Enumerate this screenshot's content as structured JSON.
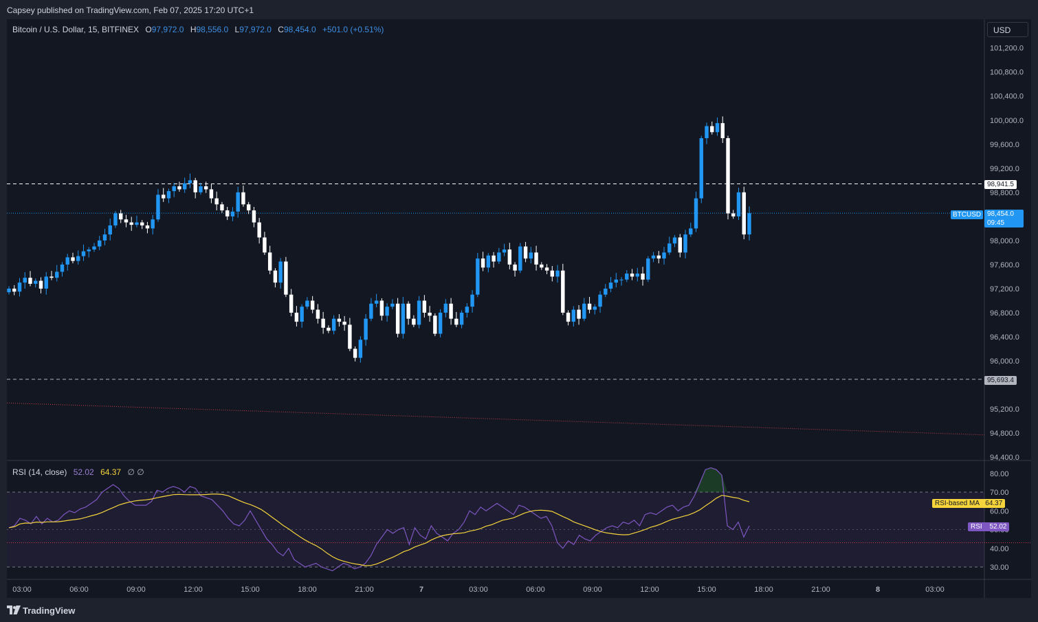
{
  "header": {
    "published": "Capsey published on TradingView.com, Feb 07, 2025 17:20 UTC+1"
  },
  "legend": {
    "symbol": "Bitcoin / U.S. Dollar, 15, BITFINEX",
    "open_label": "O",
    "open": "97,972.0",
    "high_label": "H",
    "high": "98,556.0",
    "low_label": "L",
    "low": "97,972.0",
    "close_label": "C",
    "close": "98,454.0",
    "change": "+501.0 (+0.51%)"
  },
  "currency": "USD",
  "price_axis": {
    "ticks": [
      "101,200.0",
      "100,800.0",
      "100,400.0",
      "100,000.0",
      "99,600.0",
      "99,200.0",
      "98,800.0",
      "98,000.0",
      "97,600.0",
      "97,200.0",
      "96,800.0",
      "96,400.0",
      "96,000.0",
      "95,200.0",
      "94,800.0",
      "94,400.0"
    ]
  },
  "price_tags": {
    "upper_level": "98,941.5",
    "lower_level": "95,693.4",
    "symbol_tag": "BTCUSD",
    "last_price": "98,454.0",
    "countdown": "09:45"
  },
  "rsi": {
    "label": "RSI (14, close)",
    "value": "52.02",
    "ma_value": "64.37",
    "extra": "∅  ∅",
    "ticks": [
      "80.00",
      "70.00",
      "60.00",
      "50.00",
      "40.00",
      "30.00"
    ],
    "ma_tag_label": "RSI-based MA",
    "ma_tag_value": "64.37",
    "rsi_tag_label": "RSI",
    "rsi_tag_value": "52.02"
  },
  "time_axis": {
    "labels": [
      "03:00",
      "06:00",
      "09:00",
      "12:00",
      "15:00",
      "18:00",
      "21:00",
      "7",
      "03:00",
      "06:00",
      "09:00",
      "12:00",
      "15:00",
      "18:00",
      "21:00",
      "8",
      "03:00"
    ]
  },
  "colors": {
    "up": "#2196f3",
    "down": "#ffffff",
    "rsi": "#7e57c2",
    "rsi_ma": "#f5d43c",
    "background": "#131722"
  },
  "footer": {
    "brand": "TradingView"
  },
  "chart_data": {
    "type": "candlestick",
    "symbol": "Bitcoin / U.S. Dollar",
    "interval": "15",
    "exchange": "BITFINEX",
    "ylim": [
      94400,
      101400
    ],
    "levels": {
      "resistance": 98941.5,
      "support": 95693.4,
      "last": 98454.0
    },
    "trendline": {
      "from": 95300,
      "to": 94770
    },
    "prices": [
      97200,
      97150,
      97300,
      97380,
      97280,
      97330,
      97200,
      97400,
      97380,
      97480,
      97600,
      97720,
      97660,
      97740,
      97820,
      97850,
      97900,
      98000,
      98100,
      98250,
      98450,
      98350,
      98300,
      98260,
      98300,
      98250,
      98200,
      98350,
      98760,
      98700,
      98820,
      98900,
      98850,
      98950,
      99000,
      98800,
      98900,
      98850,
      98700,
      98600,
      98500,
      98400,
      98480,
      98800,
      98600,
      98500,
      98300,
      98050,
      97800,
      97500,
      97300,
      97650,
      97100,
      96800,
      96650,
      96900,
      97000,
      96850,
      96700,
      96550,
      96500,
      96700,
      96650,
      96600,
      96200,
      96050,
      96350,
      96700,
      96950,
      97000,
      96750,
      96900,
      96950,
      96450,
      96950,
      96700,
      96600,
      97000,
      96800,
      96750,
      96450,
      96800,
      96950,
      96700,
      96600,
      96800,
      96900,
      97100,
      97700,
      97550,
      97750,
      97650,
      97800,
      97850,
      97600,
      97500,
      97900,
      97700,
      97800,
      97600,
      97550,
      97500,
      97400,
      97500,
      96800,
      96650,
      96850,
      96700,
      96950,
      96850,
      96900,
      97100,
      97200,
      97300,
      97350,
      97350,
      97450,
      97400,
      97450,
      97350,
      97700,
      97750,
      97700,
      97800,
      97950,
      98050,
      97800,
      98100,
      98200,
      98700,
      99700,
      99900,
      99800,
      99950,
      99700,
      98450,
      98400,
      98800,
      98100,
      98454
    ],
    "rsi": {
      "range": [
        25,
        85
      ],
      "overbought": 70,
      "oversold": 30,
      "values": [
        51,
        52,
        56,
        55,
        53,
        57,
        53,
        56,
        54,
        55,
        58,
        60,
        59,
        61,
        62,
        64,
        66,
        70,
        72,
        74,
        72,
        68,
        65,
        63,
        63,
        63,
        65,
        71,
        70,
        72,
        73,
        72,
        70,
        73,
        72,
        68,
        67,
        66,
        63,
        60,
        56,
        53,
        52,
        55,
        60,
        55,
        50,
        45,
        42,
        38,
        36,
        40,
        34,
        32,
        30,
        31,
        32,
        30,
        29,
        28,
        30,
        32,
        31,
        29,
        30,
        32,
        36,
        42,
        46,
        50,
        48,
        50,
        51,
        42,
        51,
        47,
        45,
        52,
        48,
        46,
        44,
        48,
        50,
        54,
        60,
        58,
        62,
        60,
        62,
        64,
        62,
        60,
        58,
        63,
        62,
        60,
        58,
        56,
        57,
        52,
        43,
        40,
        44,
        42,
        47,
        45,
        44,
        47,
        49,
        51,
        52,
        51,
        54,
        53,
        55,
        52,
        58,
        59,
        58,
        60,
        62,
        63,
        60,
        62,
        63,
        68,
        75,
        82,
        83,
        82,
        79,
        52,
        50,
        54,
        46,
        52
      ]
    },
    "rsi_ma": {
      "start": 50,
      "end": 64.37
    }
  }
}
